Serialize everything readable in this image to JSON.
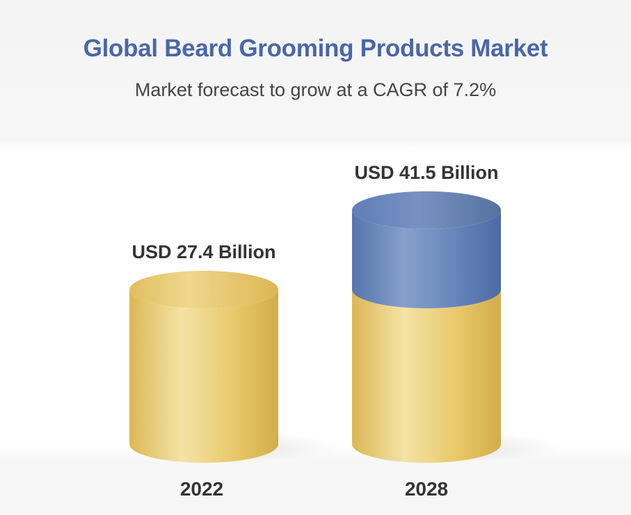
{
  "chart_data": {
    "type": "bar",
    "title": "Global Beard Grooming Products Market",
    "subtitle": "Market forecast to grow at a CAGR of 7.2%",
    "categories": [
      "2022",
      "2028"
    ],
    "values": [
      27.4,
      41.5
    ],
    "value_labels": [
      "USD 27.4 Billion",
      "USD 41.5 Billion"
    ],
    "unit": "USD Billion",
    "colors": {
      "base": "#e6c463",
      "base_light": "#f3dfa0",
      "growth": "#5d7fb6",
      "growth_dark": "#4a67a6"
    }
  }
}
